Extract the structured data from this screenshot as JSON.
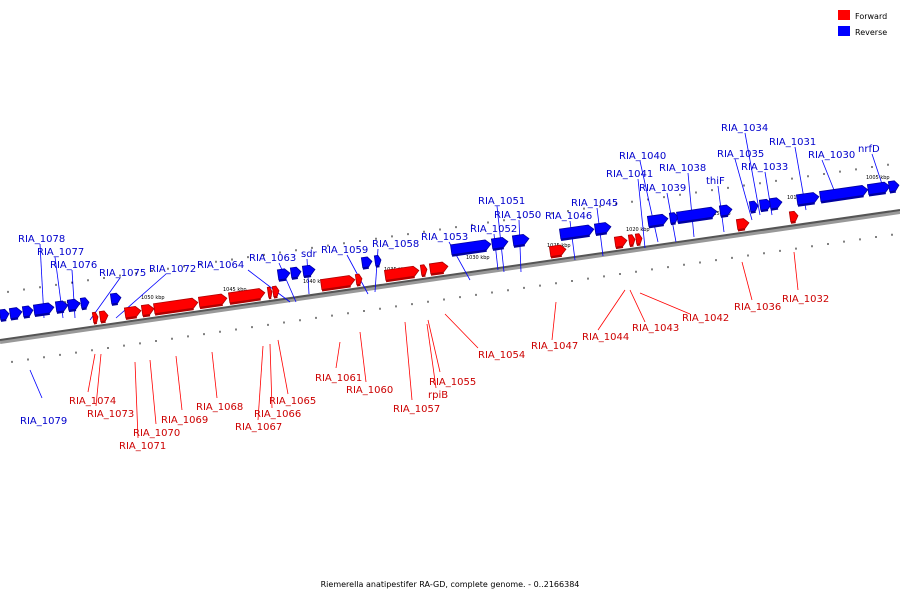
{
  "caption": "Riemerella anatipestifer RA-GD, complete genome. - 0..2166384",
  "legend": [
    {
      "label": "Forward",
      "color": "#ff0000"
    },
    {
      "label": "Reverse",
      "color": "#0000ff"
    }
  ],
  "colors": {
    "forward": "#ff0000",
    "reverse": "#0000ff",
    "forward_dark": "#b00000",
    "reverse_dark": "#0000a0",
    "forward_text": "#cc0000",
    "reverse_text": "#0000cc",
    "axis": "#888888"
  },
  "scale_labels": [
    "1005 kbp",
    "1010 kbp",
    "1015 kbp",
    "1020 kbp",
    "1025 kbp",
    "1030 kbp",
    "1035 kbp",
    "1040 kbp",
    "1045 kbp",
    "1050 kbp",
    "1055 kbp"
  ],
  "forward_genes": [
    "RIA_1032",
    "RIA_1036",
    "RIA_1042",
    "RIA_1043",
    "RIA_1044",
    "RIA_1047",
    "RIA_1054",
    "RIA_1055",
    "rpiB",
    "RIA_1057",
    "RIA_1060",
    "RIA_1061",
    "RIA_1065",
    "RIA_1066",
    "RIA_1067",
    "RIA_1068",
    "RIA_1069",
    "RIA_1070",
    "RIA_1071",
    "RIA_1073",
    "RIA_1074"
  ],
  "reverse_genes": [
    "nrfD",
    "RIA_1030",
    "RIA_1031",
    "RIA_1033",
    "RIA_1034",
    "RIA_1035",
    "thiF",
    "RIA_1038",
    "RIA_1039",
    "RIA_1040",
    "RIA_1041",
    "RIA_1045",
    "RIA_1046",
    "RIA_1050",
    "RIA_1051",
    "RIA_1052",
    "RIA_1053",
    "RIA_1058",
    "RIA_1059",
    "sdr",
    "RIA_1063",
    "RIA_1064",
    "RIA_1072",
    "RIA_1075",
    "RIA_1076",
    "RIA_1077",
    "RIA_1078",
    "RIA_1079"
  ]
}
